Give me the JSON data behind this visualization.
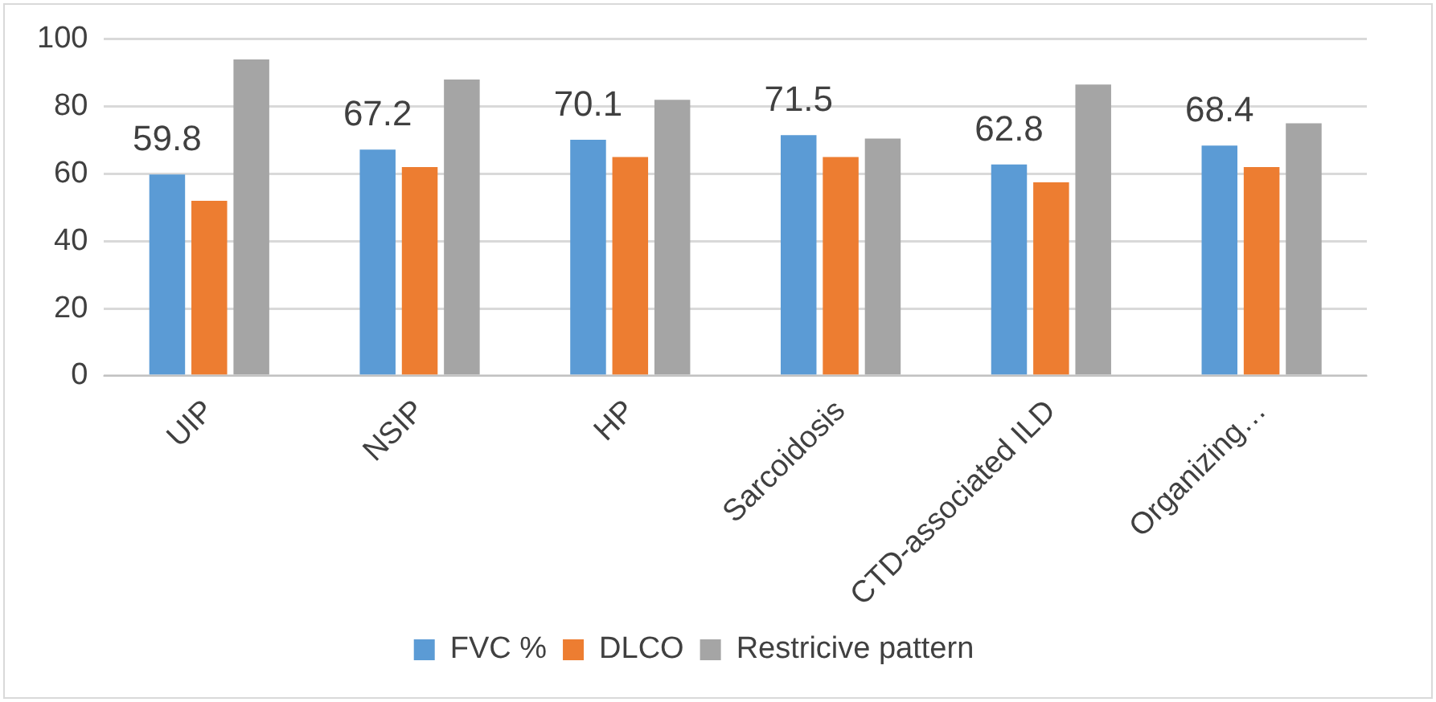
{
  "chart_data": {
    "type": "bar",
    "categories": [
      "UIP",
      "NSIP",
      "HP",
      "Sarcoidosis",
      "CTD-associated ILD",
      "Organizing…"
    ],
    "series": [
      {
        "name": "FVC %",
        "color": "#5b9bd5",
        "values": [
          59.8,
          67.2,
          70.1,
          71.5,
          62.8,
          68.4
        ],
        "value_labels": [
          "59.8",
          "67.2",
          "70.1",
          "71.5",
          "62.8",
          "68.4"
        ]
      },
      {
        "name": "DLCO",
        "color": "#ed7d31",
        "values": [
          52,
          62,
          65,
          65,
          57.5,
          62
        ]
      },
      {
        "name": "Restricive pattern",
        "color": "#a5a5a5",
        "values": [
          94,
          88,
          82,
          70.5,
          86.5,
          75
        ]
      }
    ],
    "ylim": [
      0,
      100
    ],
    "yticks": [
      0,
      20,
      40,
      60,
      80,
      100
    ],
    "grid": "y",
    "legend": "bottom"
  }
}
